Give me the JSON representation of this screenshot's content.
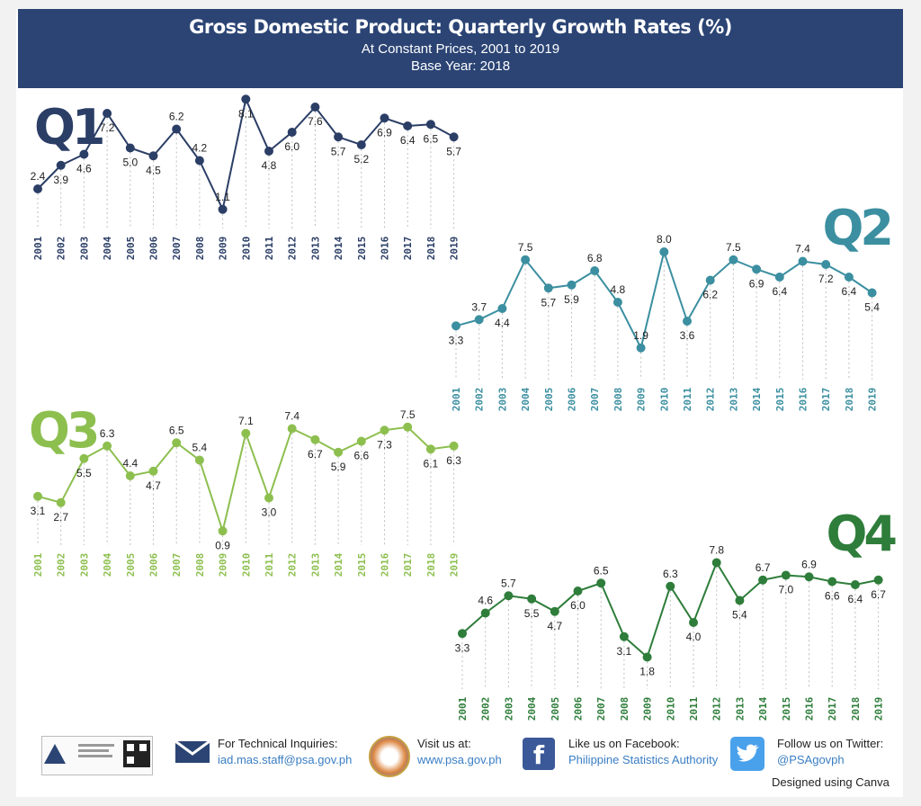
{
  "header": {
    "title": "Gross Domestic Product: Quarterly Growth Rates (%)",
    "subtitle1": "At Constant Prices, 2001 to 2019",
    "subtitle2": "Base Year: 2018"
  },
  "colors": {
    "header_bg": "#2b4474",
    "Q1": "#2b3e66",
    "Q2": "#3b8fa0",
    "Q3": "#8dbf4f",
    "Q4": "#2e7d3a"
  },
  "chart_data": [
    {
      "type": "line",
      "series_label": "Q1",
      "x": [
        "2001",
        "2002",
        "2003",
        "2004",
        "2005",
        "2006",
        "2007",
        "2008",
        "2009",
        "2010",
        "2011",
        "2012",
        "2013",
        "2014",
        "2015",
        "2016",
        "2017",
        "2018",
        "2019"
      ],
      "values": [
        2.4,
        3.9,
        4.6,
        7.2,
        5.0,
        4.5,
        6.2,
        4.2,
        1.1,
        8.1,
        4.8,
        6.0,
        7.6,
        5.7,
        5.2,
        6.9,
        6.4,
        6.5,
        5.7
      ]
    },
    {
      "type": "line",
      "series_label": "Q2",
      "x": [
        "2001",
        "2002",
        "2003",
        "2004",
        "2005",
        "2006",
        "2007",
        "2008",
        "2009",
        "2010",
        "2011",
        "2012",
        "2013",
        "2014",
        "2015",
        "2016",
        "2017",
        "2018",
        "2019"
      ],
      "values": [
        3.3,
        3.7,
        4.4,
        7.5,
        5.7,
        5.9,
        6.8,
        4.8,
        1.9,
        8.0,
        3.6,
        6.2,
        7.5,
        6.9,
        6.4,
        7.4,
        7.2,
        6.4,
        5.4
      ]
    },
    {
      "type": "line",
      "series_label": "Q3",
      "x": [
        "2001",
        "2002",
        "2003",
        "2004",
        "2005",
        "2006",
        "2007",
        "2008",
        "2009",
        "2010",
        "2011",
        "2012",
        "2013",
        "2014",
        "2015",
        "2016",
        "2017",
        "2018",
        "2019"
      ],
      "values": [
        3.1,
        2.7,
        5.5,
        6.3,
        4.4,
        4.7,
        6.5,
        5.4,
        0.9,
        7.1,
        3.0,
        7.4,
        6.7,
        5.9,
        6.6,
        7.3,
        7.5,
        6.1,
        6.3
      ]
    },
    {
      "type": "line",
      "series_label": "Q4",
      "x": [
        "2001",
        "2002",
        "2003",
        "2004",
        "2005",
        "2006",
        "2007",
        "2008",
        "2009",
        "2010",
        "2011",
        "2012",
        "2013",
        "2014",
        "2015",
        "2016",
        "2017",
        "2018",
        "2019"
      ],
      "values": [
        3.3,
        4.6,
        5.7,
        5.5,
        4.7,
        6.0,
        6.5,
        3.1,
        1.8,
        6.3,
        4.0,
        7.8,
        5.4,
        6.7,
        7.0,
        6.9,
        6.6,
        6.4,
        6.7
      ]
    }
  ],
  "footer": {
    "tech_label": "For Technical Inquiries:",
    "tech_email": "iad.mas.staff@psa.gov.ph",
    "visit_label": "Visit us at:",
    "visit_url": "www.psa.gov.ph",
    "fb_label": "Like us on Facebook:",
    "fb_name": "Philippine Statistics Authority",
    "tw_label": "Follow us on Twitter:",
    "tw_handle": "@PSAgovph",
    "canva": "Designed using Canva"
  }
}
